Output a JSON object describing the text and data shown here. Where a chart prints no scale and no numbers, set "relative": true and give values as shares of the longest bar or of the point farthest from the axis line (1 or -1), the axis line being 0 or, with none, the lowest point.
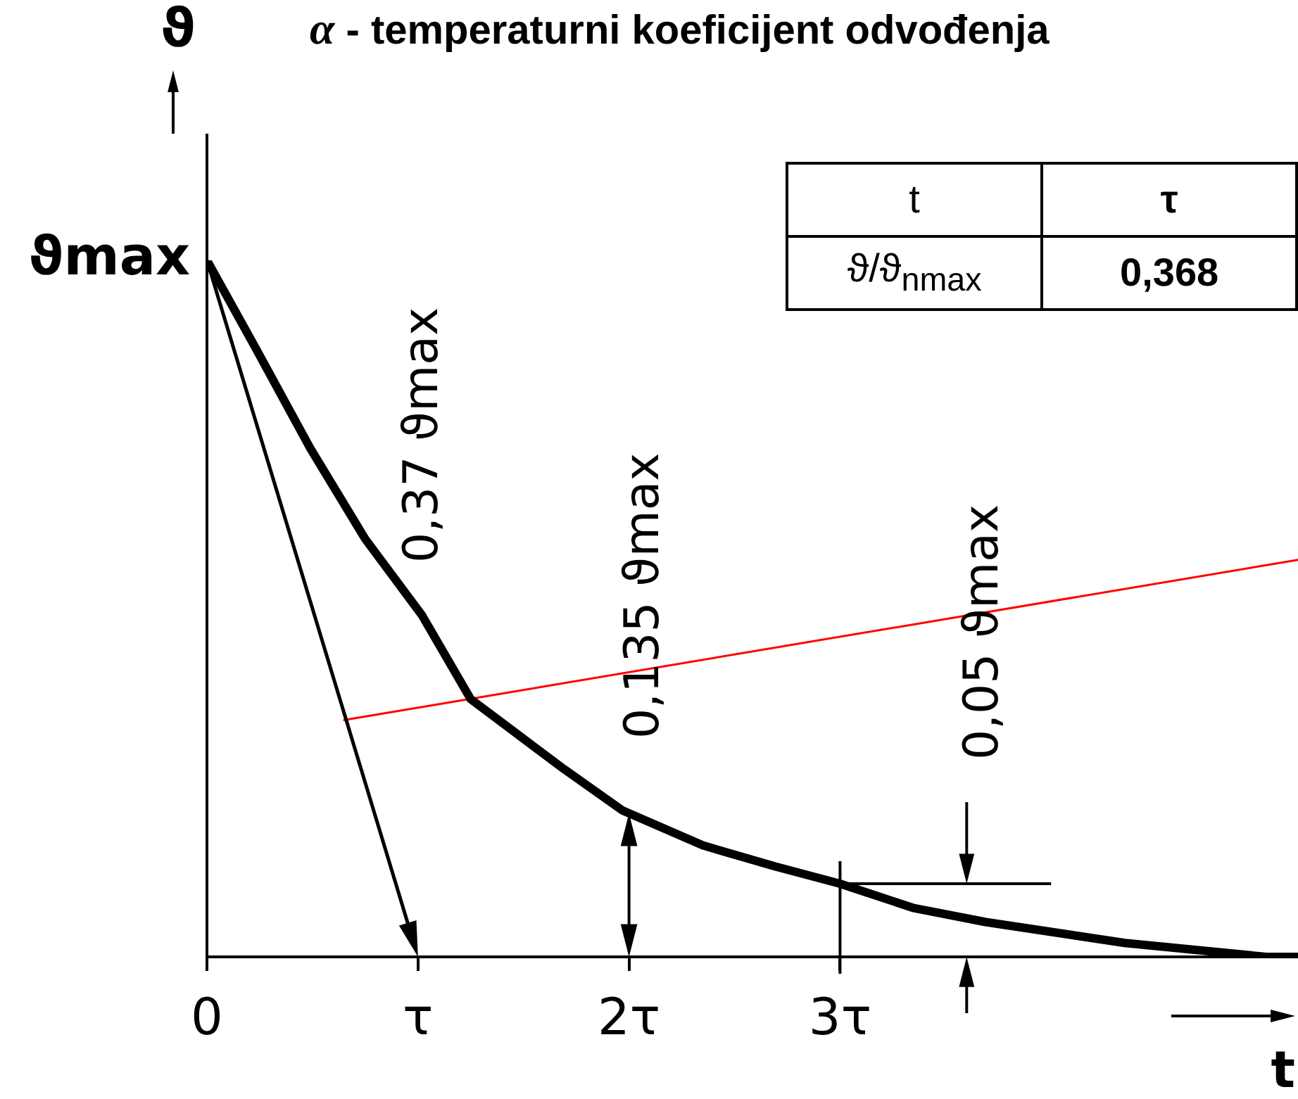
{
  "chart_data": {
    "type": "line",
    "title": "α - temperaturni koeficijent odvođenja",
    "xlabel": "t",
    "ylabel": "ϑ",
    "relative": true,
    "xlim": [
      0,
      5.17
    ],
    "xticks": [
      0,
      {
        "value": 1,
        "label": "τ"
      },
      {
        "value": 2,
        "label": "2τ"
      },
      {
        "value": 3,
        "label": "3τ"
      }
    ],
    "series": [
      {
        "color": "#000000",
        "x": [
          0,
          0.22,
          0.49,
          0.75,
          1.02,
          1.25,
          1.69,
          1.97,
          2.35,
          2.69,
          3.0,
          3.35,
          3.69,
          4.35,
          5.02,
          5.17
        ],
        "values": [
          1,
          0.88,
          0.73,
          0.6,
          0.49,
          0.37,
          0.27,
          0.21,
          0.16,
          0.13,
          0.105,
          0.07,
          0.05,
          0.02,
          0,
          0
        ]
      },
      {
        "color": "#ff0000",
        "x": [
          0.65,
          5.17
        ],
        "values": [
          0.34,
          0.57
        ]
      }
    ],
    "annotations": [
      "ϑmax",
      "0,37 ϑmax",
      "0,135 ϑmax",
      "0,05 ϑmax",
      "t",
      "τ",
      "ϑ/ϑ$_{nmax}$",
      "0,368"
    ],
    "grid": false,
    "legend": false,
    "marker": "none",
    "line_style": "solid"
  }
}
